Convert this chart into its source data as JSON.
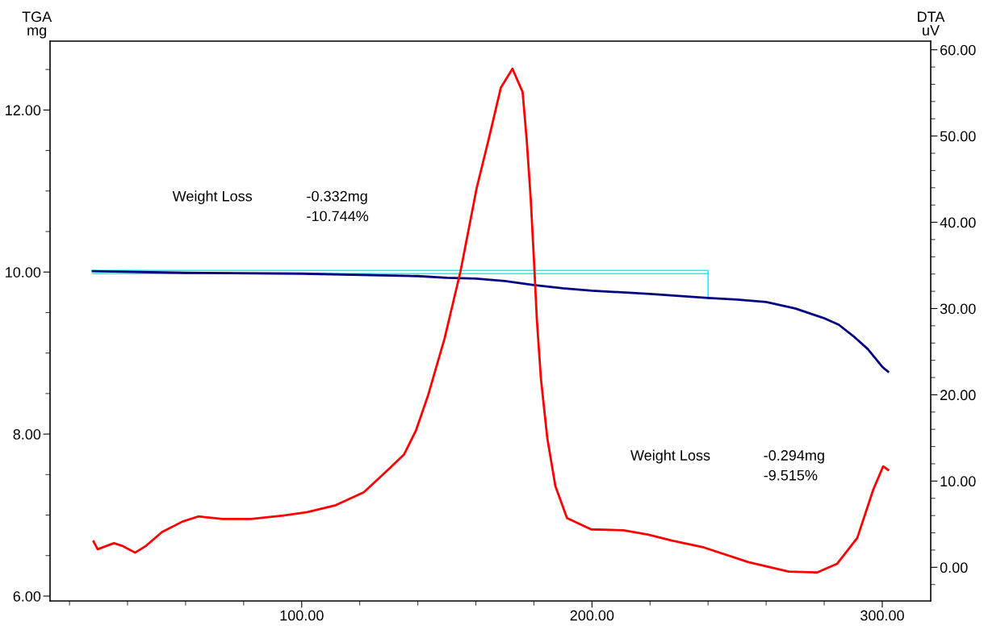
{
  "chart_data": {
    "type": "line",
    "ylabel": "TGA\nmg",
    "y2label": "DTA\nuV",
    "xlim": [
      13.3,
      316.7
    ],
    "ylim": [
      5.94,
      12.85
    ],
    "y2lim": [
      -3.9,
      61.0
    ],
    "xticks": [
      {
        "value": 20,
        "label": null
      },
      {
        "value": 40,
        "label": null
      },
      {
        "value": 60,
        "label": null
      },
      {
        "value": 80,
        "label": null
      },
      {
        "value": 100,
        "label": "100.00"
      },
      {
        "value": 120,
        "label": null
      },
      {
        "value": 140,
        "label": null
      },
      {
        "value": 160,
        "label": null
      },
      {
        "value": 180,
        "label": null
      },
      {
        "value": 200,
        "label": "200.00"
      },
      {
        "value": 220,
        "label": null
      },
      {
        "value": 240,
        "label": null
      },
      {
        "value": 260,
        "label": null
      },
      {
        "value": 280,
        "label": null
      },
      {
        "value": 300,
        "label": "300.00"
      }
    ],
    "yticks": [
      {
        "value": 6,
        "label": "6.00"
      },
      {
        "value": 6.5,
        "label": null
      },
      {
        "value": 7,
        "label": null
      },
      {
        "value": 7.5,
        "label": null
      },
      {
        "value": 8,
        "label": "8.00"
      },
      {
        "value": 8.5,
        "label": null
      },
      {
        "value": 9,
        "label": null
      },
      {
        "value": 9.5,
        "label": null
      },
      {
        "value": 10,
        "label": "10.00"
      },
      {
        "value": 10.5,
        "label": null
      },
      {
        "value": 11,
        "label": null
      },
      {
        "value": 11.5,
        "label": null
      },
      {
        "value": 12,
        "label": "12.00"
      },
      {
        "value": 12.5,
        "label": null
      }
    ],
    "y2ticks": [
      {
        "value": -2,
        "label": null
      },
      {
        "value": 0,
        "label": "0.00"
      },
      {
        "value": 2,
        "label": null
      },
      {
        "value": 4,
        "label": null
      },
      {
        "value": 6,
        "label": null
      },
      {
        "value": 8,
        "label": null
      },
      {
        "value": 10,
        "label": "10.00"
      },
      {
        "value": 12,
        "label": null
      },
      {
        "value": 14,
        "label": null
      },
      {
        "value": 16,
        "label": null
      },
      {
        "value": 18,
        "label": null
      },
      {
        "value": 20,
        "label": "20.00"
      },
      {
        "value": 22,
        "label": null
      },
      {
        "value": 24,
        "label": null
      },
      {
        "value": 26,
        "label": null
      },
      {
        "value": 28,
        "label": null
      },
      {
        "value": 30,
        "label": "30.00"
      },
      {
        "value": 32,
        "label": null
      },
      {
        "value": 34,
        "label": null
      },
      {
        "value": 36,
        "label": null
      },
      {
        "value": 38,
        "label": null
      },
      {
        "value": 40,
        "label": "40.00"
      },
      {
        "value": 42,
        "label": null
      },
      {
        "value": 44,
        "label": null
      },
      {
        "value": 46,
        "label": null
      },
      {
        "value": 48,
        "label": null
      },
      {
        "value": 50,
        "label": "50.00"
      },
      {
        "value": 52,
        "label": null
      },
      {
        "value": 54,
        "label": null
      },
      {
        "value": 56,
        "label": null
      },
      {
        "value": 58,
        "label": null
      },
      {
        "value": 60,
        "label": "60.00"
      }
    ],
    "grid": false,
    "marker": "none",
    "line_style": "solid",
    "series": [
      {
        "color": "#00ffff",
        "x": [
          28,
          240,
          240
        ],
        "values": [
          10.02,
          10.02,
          9.67
        ]
      },
      {
        "color": "#00ffff",
        "x": [
          28,
          240
        ],
        "values": [
          9.98,
          9.98
        ]
      },
      {
        "color": "#000080",
        "x": [
          28,
          60,
          100,
          140,
          150,
          160,
          170,
          180,
          190,
          200,
          220,
          240,
          250,
          260,
          270,
          280,
          285,
          290,
          295,
          300,
          302
        ],
        "values": [
          10.01,
          9.99,
          9.98,
          9.95,
          9.93,
          9.92,
          9.89,
          9.84,
          9.8,
          9.77,
          9.73,
          9.68,
          9.66,
          9.63,
          9.55,
          9.43,
          9.35,
          9.21,
          9.05,
          8.83,
          8.77
        ]
      },
      {
        "color": "#ff0000",
        "axis": "y2",
        "x": [
          28.3,
          29.7,
          35.3,
          38.1,
          42.6,
          46.4,
          51.9,
          58.9,
          64.4,
          72.8,
          82.5,
          93.6,
          101.9,
          111.7,
          121.4,
          129.7,
          135.3,
          139.4,
          143.6,
          149.2,
          154.7,
          160.3,
          164.4,
          168.6,
          172.6,
          176.1,
          177.5,
          178.9,
          180.0,
          181.0,
          182.4,
          184.6,
          187.4,
          191.4,
          199.7,
          210.8,
          219.2,
          227.5,
          238.6,
          253.9,
          267.8,
          277.5,
          284.4,
          291.4,
          296.9,
          300.3,
          302
        ],
        "values": [
          3.0,
          2.1,
          2.8,
          2.5,
          1.7,
          2.5,
          4.1,
          5.3,
          5.9,
          5.6,
          5.6,
          6.0,
          6.4,
          7.2,
          8.7,
          11.3,
          13.1,
          15.9,
          20.0,
          26.5,
          34.3,
          44.0,
          49.6,
          55.6,
          57.8,
          55.1,
          49.6,
          42.7,
          35.7,
          28.8,
          21.9,
          15.0,
          9.4,
          5.7,
          4.4,
          4.3,
          3.8,
          3.1,
          2.3,
          0.6,
          -0.5,
          -0.6,
          0.4,
          3.4,
          9.0,
          11.7,
          11.3
        ]
      }
    ],
    "annotations": [
      "Weight Loss",
      "-0.332mg\n-10.744%",
      "Weight Loss",
      "-0.294mg\n-9.515%"
    ]
  }
}
